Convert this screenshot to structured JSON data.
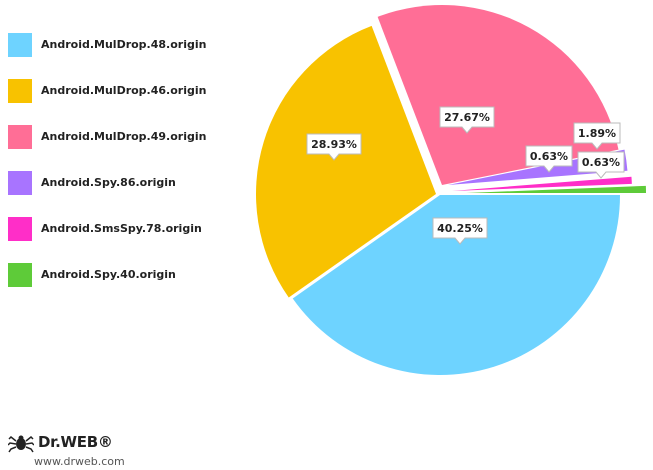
{
  "chart_data": {
    "type": "pie",
    "title": "",
    "legend_position": "left",
    "series": [
      {
        "name": "Android.MulDrop.48.origin",
        "value": 40.25,
        "label": "40.25%",
        "color": "#6ED3FF"
      },
      {
        "name": "Android.MulDrop.46.origin",
        "value": 28.93,
        "label": "28.93%",
        "color": "#F8C200"
      },
      {
        "name": "Android.MulDrop.49.origin",
        "value": 27.67,
        "label": "27.67%",
        "color": "#FF6E96"
      },
      {
        "name": "Android.Spy.86.origin",
        "value": 1.89,
        "label": "1.89%",
        "color": "#A874FF"
      },
      {
        "name": "Android.SmsSpy.78.origin",
        "value": 0.63,
        "label": "0.63%",
        "color": "#FF2EC8"
      },
      {
        "name": "Android.Spy.40.origin",
        "value": 0.63,
        "label": "0.63%",
        "color": "#5ECB39"
      }
    ]
  },
  "logo": {
    "brand": "Dr.WEB®",
    "url": "www.drweb.com"
  }
}
